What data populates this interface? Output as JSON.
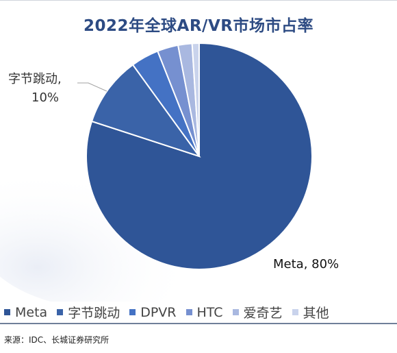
{
  "chart_data": {
    "type": "pie",
    "title": "2022年全球AR/VR市场市占率",
    "slices": [
      {
        "name": "Meta",
        "value": 80,
        "color": "#2f5597"
      },
      {
        "name": "字节跳动",
        "value": 10,
        "color": "#3a63a8"
      },
      {
        "name": "DPVR",
        "value": 4,
        "color": "#4472c4"
      },
      {
        "name": "HTC",
        "value": 3,
        "color": "#7690d0"
      },
      {
        "name": "爱奇艺",
        "value": 2,
        "color": "#a9b8e0"
      },
      {
        "name": "其他",
        "value": 1,
        "color": "#c9d3ec"
      }
    ],
    "data_labels": [
      {
        "slice": "Meta",
        "text": "Meta, 80%"
      },
      {
        "slice": "字节跳动",
        "line1": "字节跳动,",
        "line2": "10%"
      }
    ],
    "legend_placement": "bottom"
  },
  "source": "来源：IDC、长城证券研究所"
}
